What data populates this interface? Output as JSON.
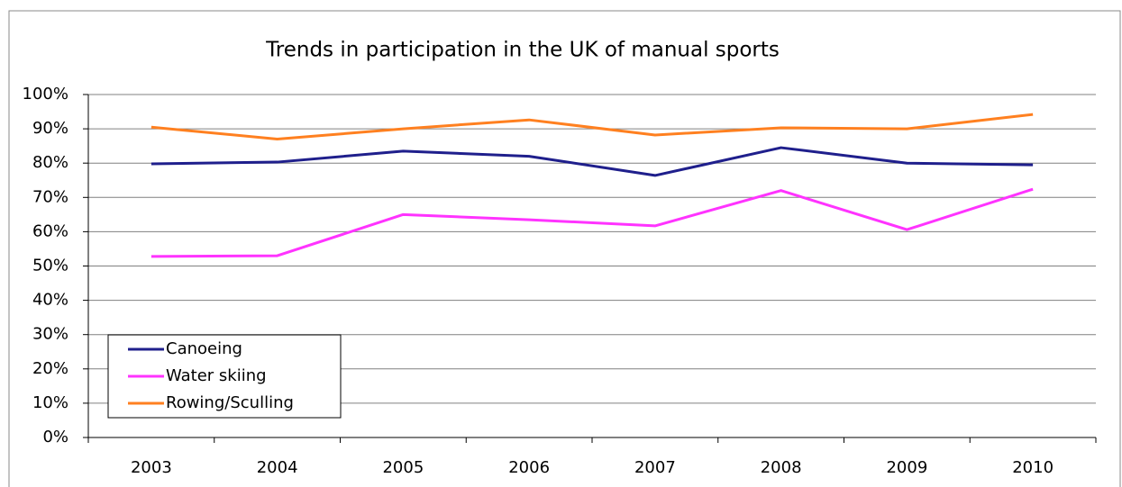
{
  "chart_data": {
    "type": "line",
    "title": "Trends in participation in the UK of manual sports",
    "categories": [
      "2003",
      "2004",
      "2005",
      "2006",
      "2007",
      "2008",
      "2009",
      "2010"
    ],
    "series": [
      {
        "name": "Canoeing",
        "color": "#1f1f8c",
        "values": [
          79.8,
          80.3,
          83.5,
          82,
          76.4,
          84.5,
          80,
          79.5
        ]
      },
      {
        "name": "Water skiing",
        "color": "#ff33ff",
        "values": [
          52.8,
          53,
          65,
          63.5,
          61.7,
          72,
          60.6,
          72.4
        ]
      },
      {
        "name": "Rowing/Sculling",
        "color": "#ff8020",
        "values": [
          90.5,
          87,
          90,
          92.6,
          88.2,
          90.3,
          90,
          94.2
        ]
      }
    ],
    "ylim": [
      0,
      100
    ],
    "yticks": [
      {
        "value": 0,
        "label": "0%"
      },
      {
        "value": 10,
        "label": "10%"
      },
      {
        "value": 20,
        "label": "20%"
      },
      {
        "value": 30,
        "label": "30%"
      },
      {
        "value": 40,
        "label": "40%"
      },
      {
        "value": 50,
        "label": "50%"
      },
      {
        "value": 60,
        "label": "60%"
      },
      {
        "value": 70,
        "label": "70%"
      },
      {
        "value": 80,
        "label": "80%"
      },
      {
        "value": 90,
        "label": "90%"
      },
      {
        "value": 100,
        "label": "100%"
      }
    ],
    "grid": true,
    "legend": "lower left"
  }
}
